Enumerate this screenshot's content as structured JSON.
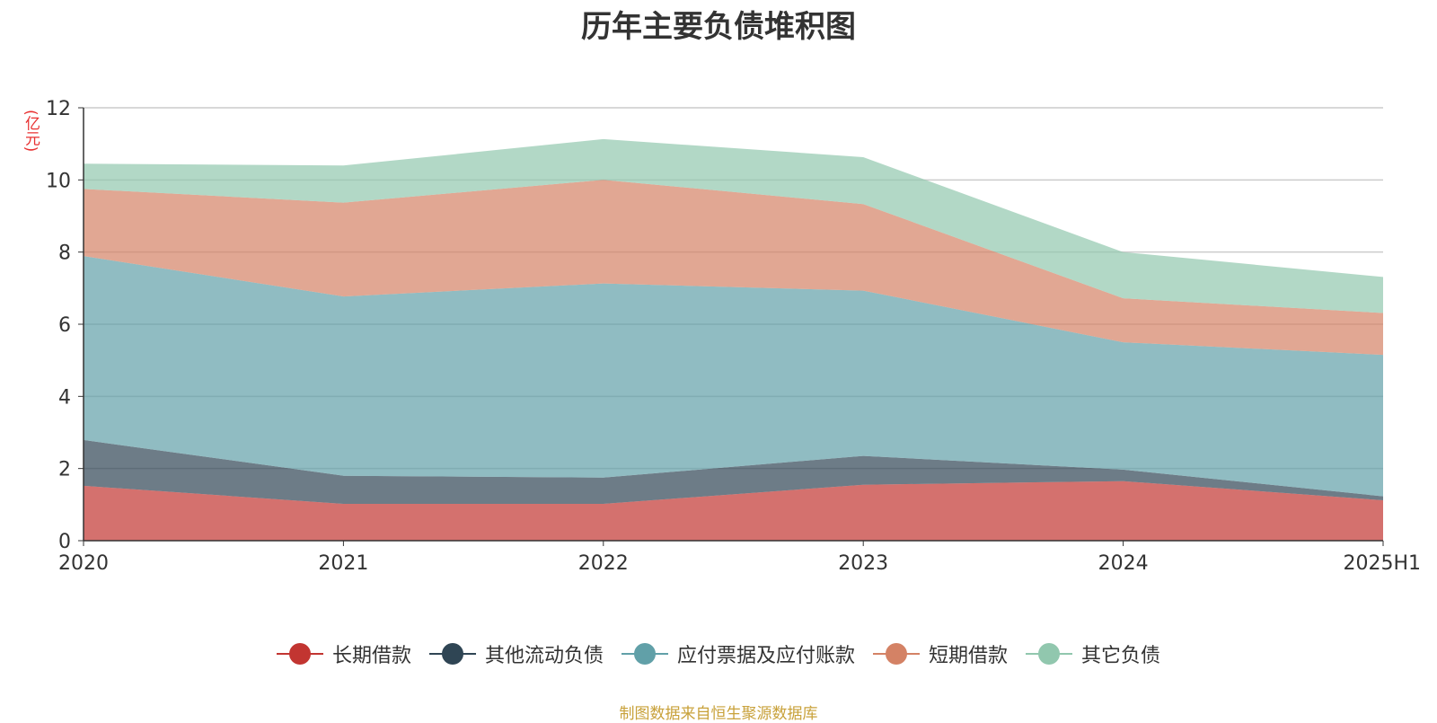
{
  "chart_data": {
    "type": "area",
    "stacked": true,
    "title": "历年主要负债堆积图",
    "unit": "(亿元)",
    "x": [
      "2020",
      "2021",
      "2022",
      "2023",
      "2024",
      "2025H1"
    ],
    "ylim": [
      0,
      12
    ],
    "yticks": [
      0,
      2,
      4,
      6,
      8,
      10,
      12
    ],
    "grid": true,
    "legend_position": "bottom",
    "series": [
      {
        "name": "长期借款",
        "color": "#c23531",
        "values": [
          1.52,
          1.02,
          1.02,
          1.55,
          1.65,
          1.12
        ]
      },
      {
        "name": "其他流动负债",
        "color": "#2f4554",
        "values": [
          1.27,
          0.78,
          0.73,
          0.8,
          0.32,
          0.11
        ]
      },
      {
        "name": "应付票据及应付账款",
        "color": "#61a0a8",
        "values": [
          5.1,
          4.97,
          5.38,
          4.58,
          3.53,
          3.92
        ]
      },
      {
        "name": "短期借款",
        "color": "#d48265",
        "values": [
          1.86,
          2.6,
          2.87,
          2.4,
          1.22,
          1.16
        ]
      },
      {
        "name": "其它负债",
        "color": "#91c7ae",
        "values": [
          0.7,
          1.03,
          1.13,
          1.3,
          1.28,
          1.0
        ]
      }
    ]
  },
  "source_note": "制图数据来自恒生聚源数据库"
}
